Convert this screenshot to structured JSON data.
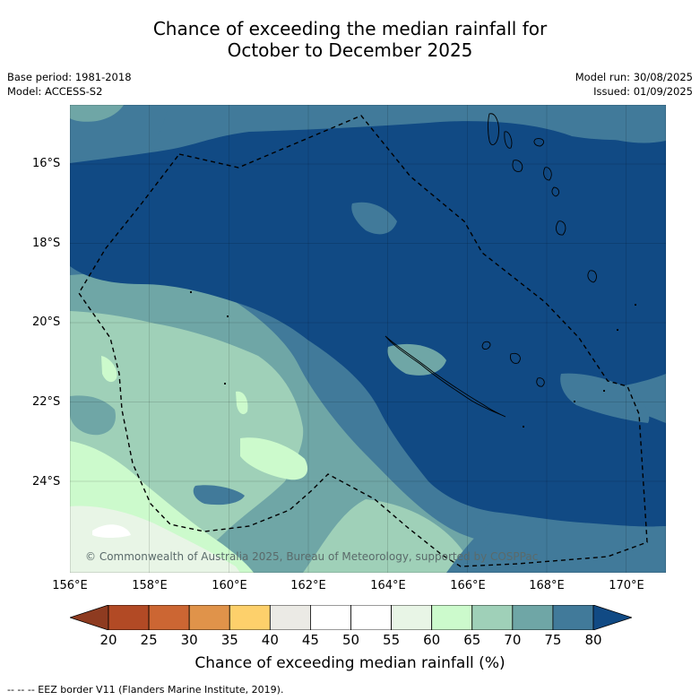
{
  "title_line1": "Chance of exceeding the median rainfall for",
  "title_line2": "October to December 2025",
  "base_period": "Base period: 1981-2018",
  "model": "Model: ACCESS-S2",
  "model_run": "Model run: 30/08/2025",
  "issued": "Issued: 01/09/2025",
  "copyright": "© Commonwealth of Australia 2025, Bureau of Meteorology, supported by COSPPac",
  "lat_labels": [
    "16°S",
    "18°S",
    "20°S",
    "22°S",
    "24°S"
  ],
  "lon_labels": [
    "156°E",
    "158°E",
    "160°E",
    "162°E",
    "164°E",
    "166°E",
    "168°E",
    "170°E"
  ],
  "colorbar": {
    "ticks": [
      "20",
      "25",
      "30",
      "35",
      "40",
      "45",
      "50",
      "55",
      "60",
      "65",
      "70",
      "75",
      "80"
    ],
    "colors": [
      "#8e3b20",
      "#b24a25",
      "#cc6633",
      "#e0934a",
      "#fdd06b",
      "#ebeae5",
      "#ffffff",
      "#ffffff",
      "#e8f5e6",
      "#ccfacc",
      "#9fd0b8",
      "#6fa6a6",
      "#417a9a",
      "#114a84"
    ],
    "label": "Chance of exceeding median rainfall (%)"
  },
  "footnote": "--  --  -- EEZ border V11 (Flanders Marine Institute, 2019)."
}
